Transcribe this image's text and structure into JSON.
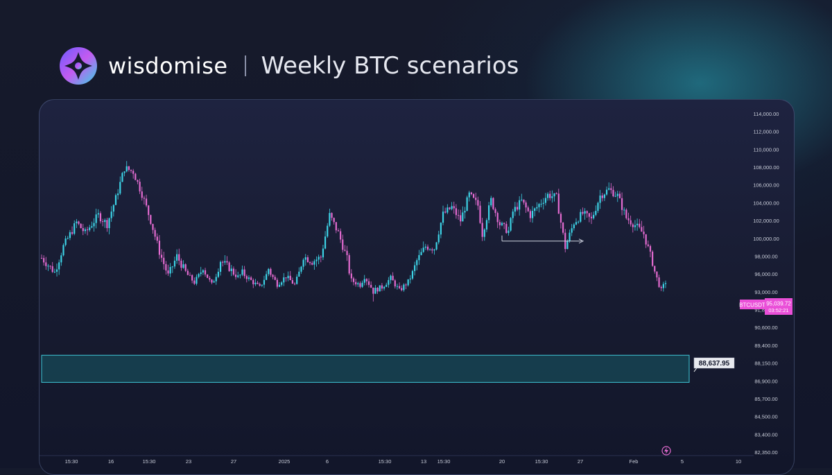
{
  "header": {
    "brand": "wisdomise",
    "title": "Weekly BTC scenarios"
  },
  "colors": {
    "up": "#3dd3e6",
    "down": "#e36bd0",
    "zone_fill": "#164452",
    "zone_border": "#3fc6d6",
    "symbol_badge": "#ea4fd8",
    "axis_text": "#c8ccd8"
  },
  "chart_data": {
    "type": "candlestick",
    "symbol": "BTCUSDT",
    "last_price_label": "95,039.72",
    "countdown": "03:52:21",
    "target_label": "88,637.95",
    "ylim": [
      82350,
      114000
    ],
    "y_tick_labels": [
      "114,000.00",
      "112,000.00",
      "110,000.00",
      "108,000.00",
      "106,000.00",
      "104,000.00",
      "102,000.00",
      "100,000.00",
      "98,000.00",
      "96,000.00",
      "93,000.00",
      "91,800.00",
      "90,600.00",
      "89,400.00",
      "88,150.00",
      "86,900.00",
      "85,700.00",
      "84,500.00",
      "83,400.00",
      "82,350.00"
    ],
    "x_tick_labels": [
      "15:30",
      "16",
      "15:30",
      "23",
      "27",
      "2025",
      "6",
      "15:30",
      "13",
      "15:30",
      "20",
      "15:30",
      "27",
      "Feb",
      "5",
      "10"
    ],
    "support_zone": {
      "low": 86800,
      "high": 88700
    },
    "range_arrow": {
      "price": 99700,
      "from": "20",
      "to": "27"
    },
    "close_path": [
      [
        0,
        97800
      ],
      [
        3,
        96200
      ],
      [
        5,
        99100
      ],
      [
        8,
        101800
      ],
      [
        10,
        100600
      ],
      [
        13,
        102600
      ],
      [
        15,
        101600
      ],
      [
        17,
        104500
      ],
      [
        19,
        107900
      ],
      [
        21,
        107500
      ],
      [
        23,
        105000
      ],
      [
        25,
        102000
      ],
      [
        27,
        98500
      ],
      [
        29,
        95800
      ],
      [
        31,
        98000
      ],
      [
        33,
        96200
      ],
      [
        35,
        94600
      ],
      [
        37,
        96800
      ],
      [
        39,
        94200
      ],
      [
        41,
        97500
      ],
      [
        43,
        96700
      ],
      [
        45,
        95500
      ],
      [
        46,
        96100
      ],
      [
        48,
        94900
      ],
      [
        50,
        93700
      ],
      [
        52,
        96600
      ],
      [
        54,
        94300
      ],
      [
        56,
        95600
      ],
      [
        58,
        94200
      ],
      [
        60,
        98000
      ],
      [
        62,
        97400
      ],
      [
        64,
        97900
      ],
      [
        66,
        102600
      ],
      [
        68,
        100600
      ],
      [
        70,
        97700
      ],
      [
        71,
        94900
      ],
      [
        73,
        94200
      ],
      [
        74,
        95600
      ],
      [
        76,
        93200
      ],
      [
        78,
        93800
      ],
      [
        80,
        95300
      ],
      [
        82,
        93200
      ],
      [
        84,
        94700
      ],
      [
        86,
        97500
      ],
      [
        88,
        99100
      ],
      [
        90,
        98900
      ],
      [
        92,
        102700
      ],
      [
        94,
        103500
      ],
      [
        96,
        102000
      ],
      [
        98,
        104900
      ],
      [
        100,
        103700
      ],
      [
        101,
        100500
      ],
      [
        103,
        104300
      ],
      [
        105,
        101600
      ],
      [
        107,
        100800
      ],
      [
        108,
        103000
      ],
      [
        110,
        104200
      ],
      [
        112,
        102600
      ],
      [
        114,
        103800
      ],
      [
        116,
        104900
      ],
      [
        118,
        104600
      ],
      [
        120,
        99000
      ],
      [
        122,
        101800
      ],
      [
        124,
        102800
      ],
      [
        126,
        102100
      ],
      [
        128,
        104800
      ],
      [
        130,
        105500
      ],
      [
        132,
        104800
      ],
      [
        134,
        102300
      ],
      [
        136,
        101500
      ],
      [
        138,
        100500
      ],
      [
        140,
        97300
      ],
      [
        142,
        93200
      ],
      [
        143,
        94700
      ]
    ]
  }
}
